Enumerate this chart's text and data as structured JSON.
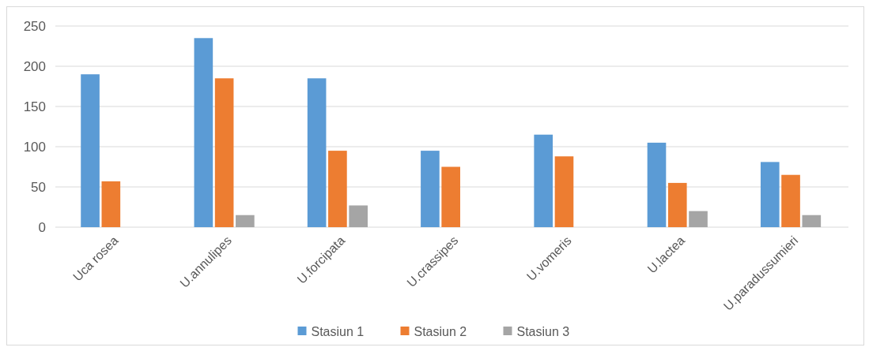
{
  "chart_data": {
    "type": "bar",
    "categories": [
      "Uca rosea",
      "U.annulipes",
      "U.forcipata",
      "U.crassipes",
      "U.vomeris",
      "U.lactea",
      "U.paradussumieri"
    ],
    "series": [
      {
        "name": "Stasiun 1",
        "color": "#5b9bd5",
        "values": [
          190,
          235,
          185,
          95,
          115,
          105,
          81
        ]
      },
      {
        "name": "Stasiun 2",
        "color": "#ed7d31",
        "values": [
          57,
          185,
          95,
          75,
          88,
          55,
          65
        ]
      },
      {
        "name": "Stasiun 3",
        "color": "#a5a5a5",
        "values": [
          null,
          15,
          27,
          null,
          null,
          20,
          15
        ]
      }
    ],
    "ylim": [
      0,
      250
    ],
    "yticks": [
      0,
      50,
      100,
      150,
      200,
      250
    ],
    "grid": "y",
    "legend": "bottom"
  }
}
